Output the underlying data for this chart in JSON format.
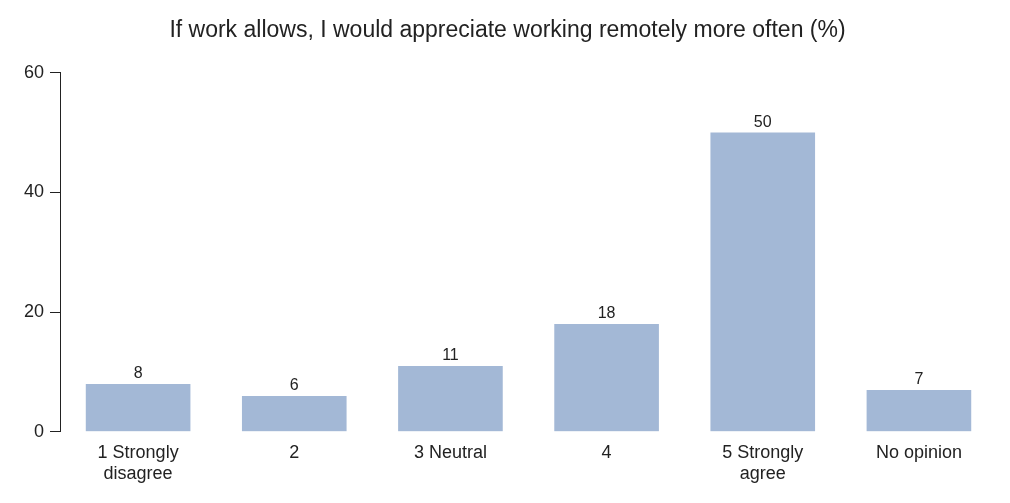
{
  "chart_data": {
    "type": "bar",
    "title": "If work allows, I would appreciate working remotely more often (%)",
    "categories": [
      "1 Strongly disagree",
      "2",
      "3 Neutral",
      "4",
      "5 Strongly agree",
      "No opinion"
    ],
    "values": [
      8,
      6,
      11,
      18,
      50,
      7
    ],
    "color": "#a3b8d6",
    "ylim": [
      0,
      60
    ],
    "yticks": [
      0,
      20,
      40,
      60
    ],
    "grid": false,
    "legend": false,
    "data_labels": true
  }
}
